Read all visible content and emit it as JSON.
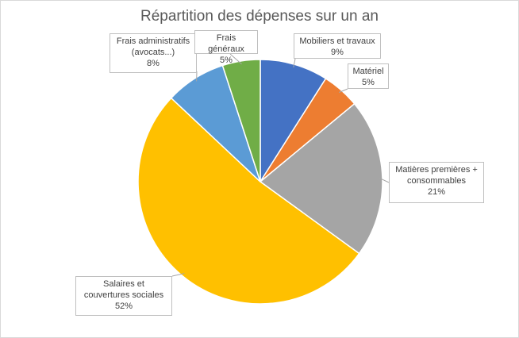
{
  "chart_data": {
    "type": "pie",
    "title": "Répartition des dépenses sur un an",
    "categories": [
      "Mobiliers et travaux",
      "Matériel",
      "Matières premières + consommables",
      "Salaires et couvertures sociales",
      "Frais administratifs (avocats...)",
      "Frais généraux"
    ],
    "values": [
      9,
      5,
      21,
      52,
      8,
      5
    ],
    "value_labels": [
      "9%",
      "5%",
      "21%",
      "52%",
      "8%",
      "5%"
    ],
    "colors": [
      "#4472c4",
      "#ed7d31",
      "#a5a5a5",
      "#ffc000",
      "#5b9bd5",
      "#70ad47"
    ],
    "legend": "none",
    "data_labels": "callouts"
  }
}
